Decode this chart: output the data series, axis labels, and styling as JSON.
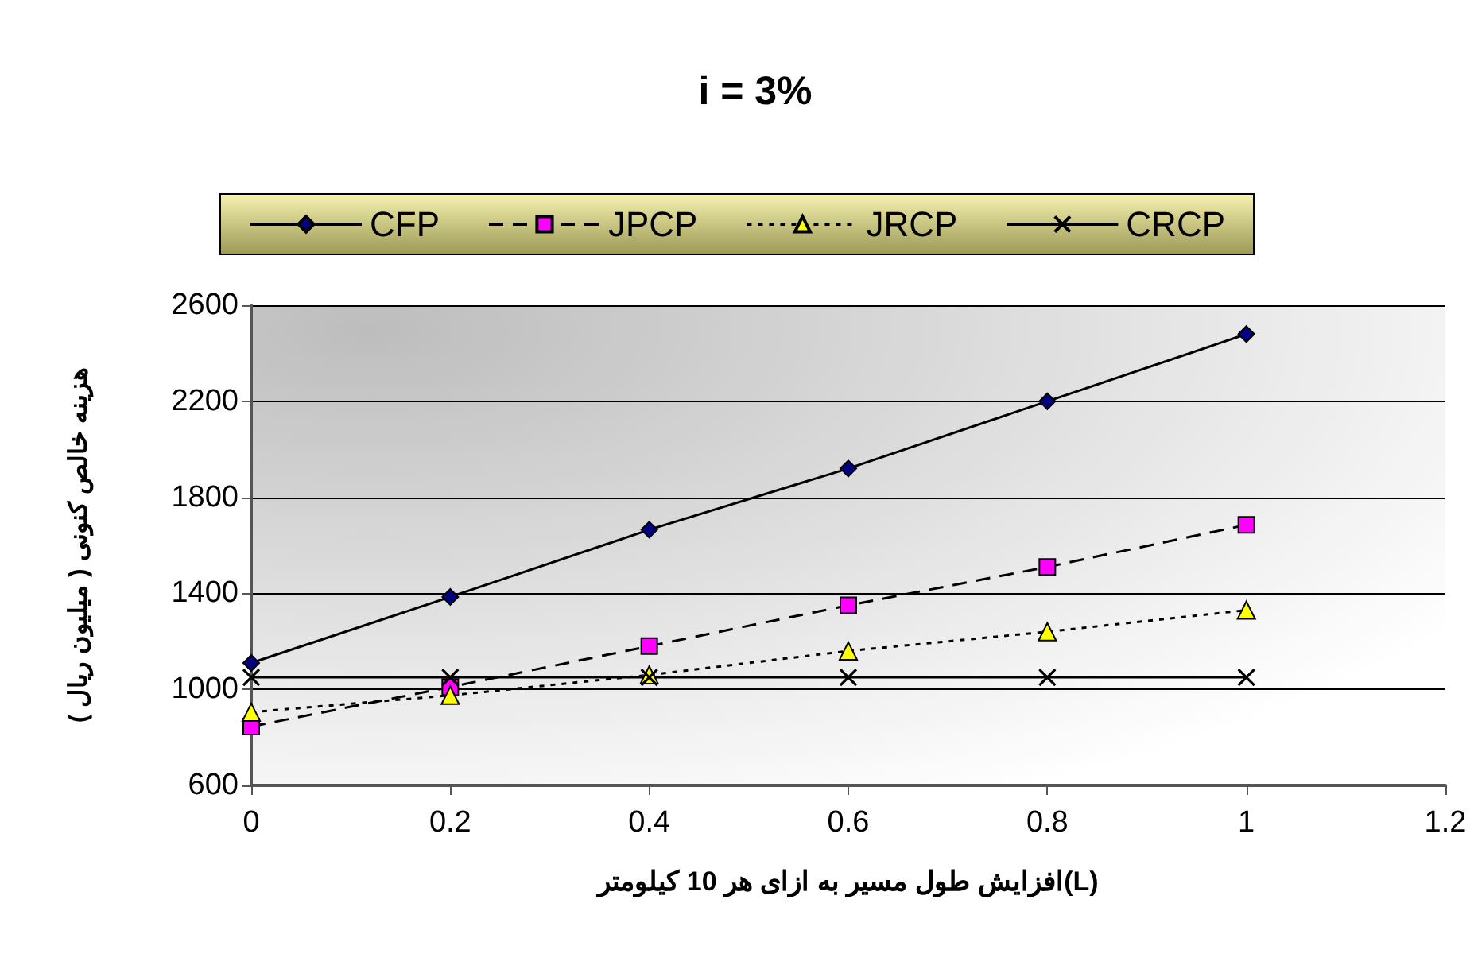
{
  "chart_data": {
    "type": "line",
    "title": "i = 3%",
    "xlabel": "افزایش طول مسیر به ازای هر 10 کیلومتر(L)",
    "ylabel": "هزینه خالص کنونی ( میلیون ریال )",
    "x": [
      0,
      0.2,
      0.4,
      0.6,
      0.8,
      1
    ],
    "series": [
      {
        "name": "CFP",
        "color": "#000080",
        "marker": "diamond",
        "line_style": "solid",
        "values": [
          1110,
          1385,
          1665,
          1920,
          2200,
          2480
        ]
      },
      {
        "name": "JPCP",
        "color": "#ff00ff",
        "marker": "square",
        "line_style": "dashed",
        "values": [
          845,
          1010,
          1180,
          1350,
          1510,
          1685
        ]
      },
      {
        "name": "JRCP",
        "color": "#ffff00",
        "marker": "triangle",
        "line_style": "dotted",
        "values": [
          905,
          975,
          1060,
          1160,
          1240,
          1330
        ]
      },
      {
        "name": "CRCP",
        "color": "#000000",
        "marker": "cross",
        "line_style": "solid",
        "values": [
          1050,
          1050,
          1050,
          1050,
          1050,
          1050
        ]
      }
    ],
    "xlim": [
      0,
      1.2
    ],
    "xticks": [
      0,
      0.2,
      0.4,
      0.6,
      0.8,
      1,
      1.2
    ],
    "ylim": [
      600,
      2600
    ],
    "yticks": [
      600,
      1000,
      1400,
      1800,
      2200,
      2600
    ],
    "grid": "y",
    "legend": "top"
  }
}
